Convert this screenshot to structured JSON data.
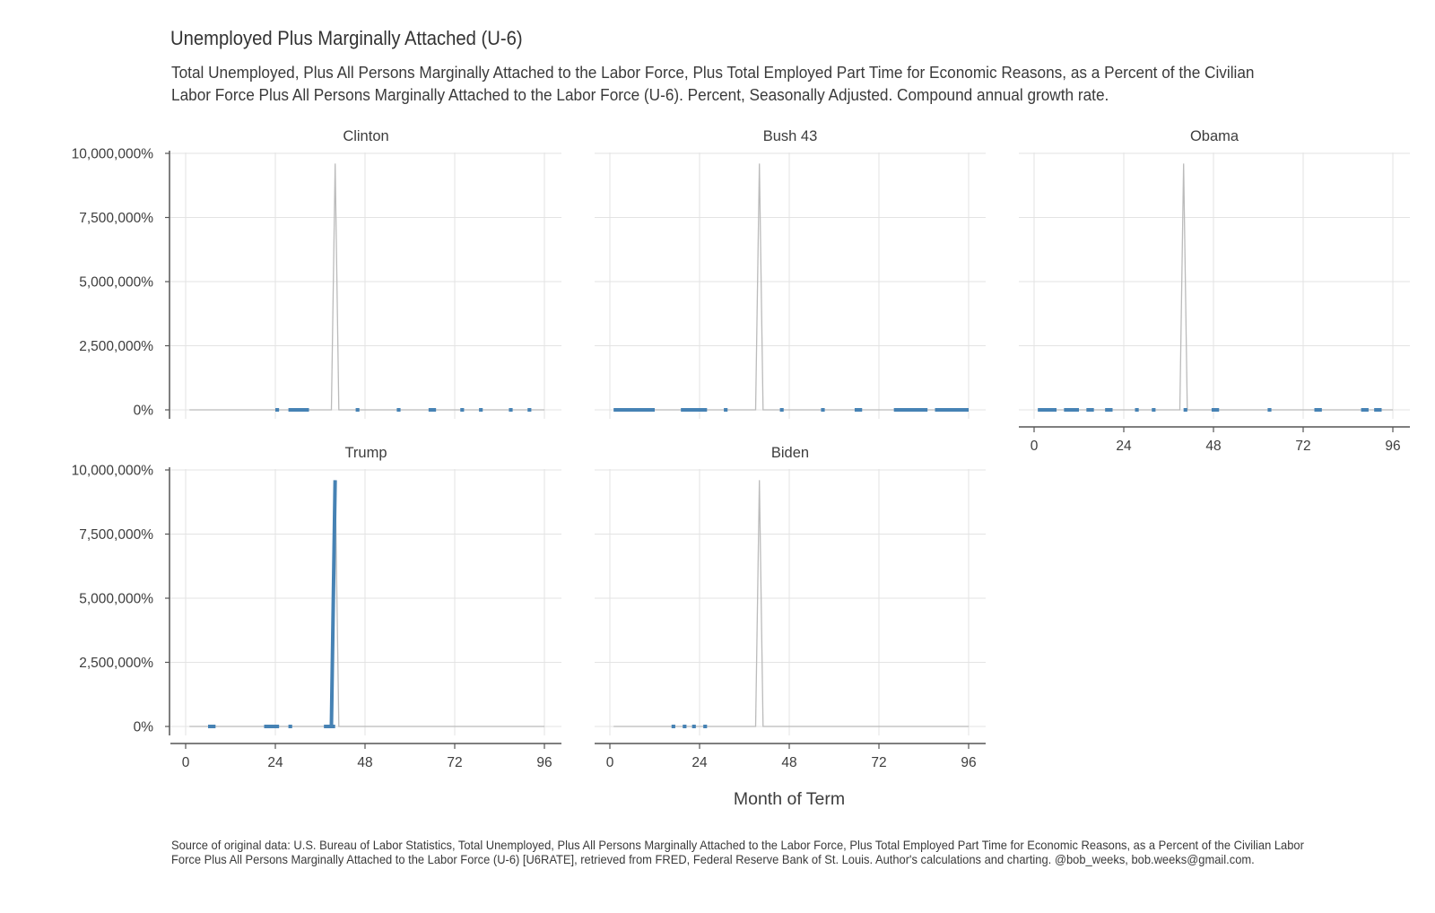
{
  "chart_data": {
    "type": "line",
    "title": "Unemployed Plus Marginally Attached (U-6)",
    "subtitle": "Total Unemployed, Plus All Persons Marginally Attached to the Labor Force, Plus Total Employed Part Time for Economic Reasons, as a Percent of the Civilian Labor Force Plus All Persons Marginally Attached to the Labor Force (U-6). Percent, Seasonally Adjusted. Compound annual growth rate.",
    "caption": "Source of original data: U.S. Bureau of Labor Statistics, Total Unemployed, Plus All Persons Marginally Attached to the Labor Force, Plus Total Employed Part Time for Economic Reasons, as a Percent of the Civilian Labor Force Plus All Persons Marginally Attached to the Labor Force (U-6) [U6RATE], retrieved from FRED, Federal Reserve Bank of St. Louis. Author's calculations and charting. @bob_weeks, bob.weeks@gmail.com.",
    "xlabel": "Month of Term",
    "ylabel": "",
    "xlim": [
      0,
      96
    ],
    "ylim": [
      0,
      10000000
    ],
    "x_ticks": [
      "0",
      "24",
      "48",
      "72",
      "96"
    ],
    "y_ticks": [
      "0%",
      "2,500,000%",
      "5,000,000%",
      "7,500,000%",
      "10,000,000%"
    ],
    "grid": true,
    "background_line": {
      "description": "all presidents' terms drawn in grey behind each panel",
      "color": "#bbbbbb",
      "points": [
        [
          1,
          0
        ],
        [
          37,
          0
        ],
        [
          39,
          0
        ],
        [
          40,
          9600000
        ],
        [
          41,
          0
        ],
        [
          96,
          0
        ]
      ]
    },
    "highlight_color": "#4682b4",
    "panels": [
      {
        "name": "Clinton",
        "segments": [
          [
            24,
            25
          ],
          [
            27.5,
            33
          ],
          [
            45.5,
            46.5
          ],
          [
            56.5,
            57.5
          ],
          [
            65,
            67
          ],
          [
            73.5,
            74.5
          ],
          [
            78.5,
            79.5
          ],
          [
            86.5,
            87.5
          ],
          [
            91.5,
            92.5
          ]
        ]
      },
      {
        "name": "Bush 43",
        "segments": [
          [
            1,
            12
          ],
          [
            19,
            26
          ],
          [
            30.5,
            31.5
          ],
          [
            45.5,
            46.5
          ],
          [
            56.5,
            57.5
          ],
          [
            65.5,
            67.5
          ],
          [
            76,
            85
          ],
          [
            87,
            96
          ]
        ]
      },
      {
        "name": "Obama",
        "segments": [
          [
            1,
            6
          ],
          [
            8,
            12
          ],
          [
            14,
            16
          ],
          [
            19,
            21
          ],
          [
            27,
            28
          ],
          [
            31.5,
            32.5
          ],
          [
            40,
            41
          ],
          [
            47.5,
            49.5
          ],
          [
            62.5,
            63.5
          ],
          [
            75,
            77
          ],
          [
            87.5,
            89.5
          ],
          [
            91,
            93
          ]
        ]
      },
      {
        "name": "Trump",
        "segments": [
          [
            6,
            8
          ],
          [
            21,
            25
          ],
          [
            27.5,
            28.5
          ],
          [
            37,
            39
          ],
          [
            39,
            40
          ]
        ],
        "spike": true
      },
      {
        "name": "Biden",
        "segments": [
          [
            16.5,
            17.5
          ],
          [
            19.5,
            20.5
          ],
          [
            22,
            23
          ],
          [
            25,
            26
          ]
        ]
      }
    ]
  }
}
